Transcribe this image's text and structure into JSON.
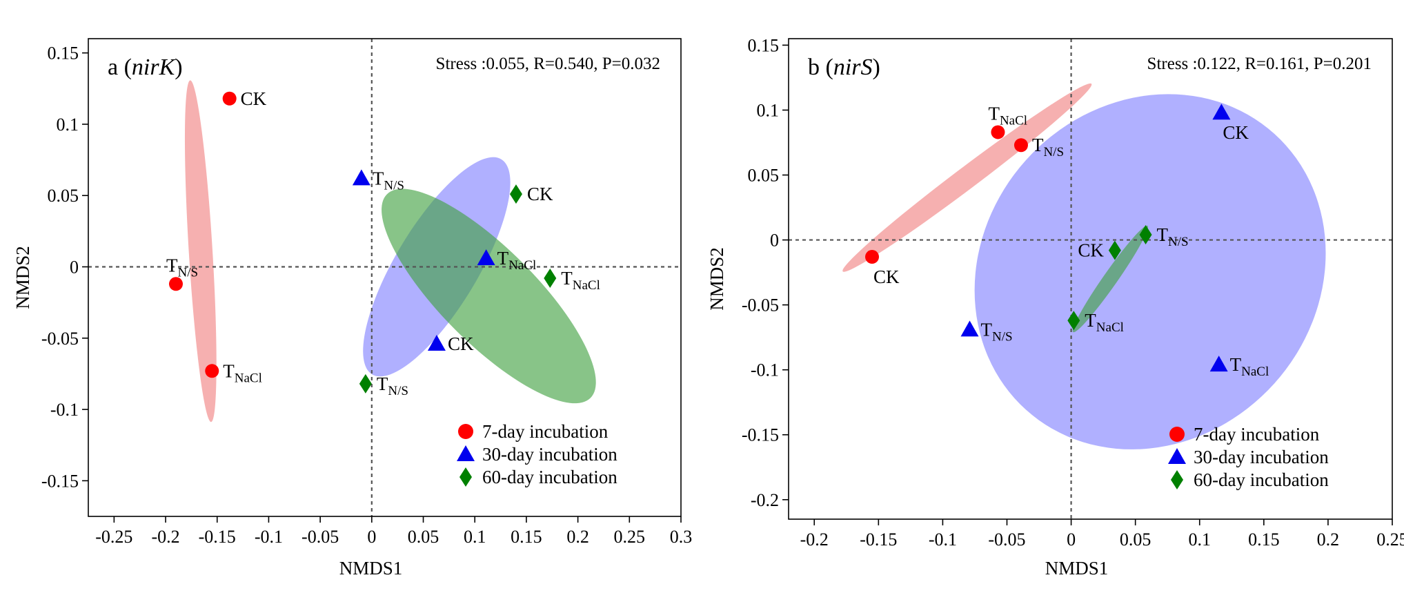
{
  "chart_data": [
    {
      "type": "scatter",
      "panel_letter": "a",
      "gene": "nirK",
      "stats": "Stress :0.055, R=0.540, P=0.032",
      "xlabel": "NMDS1",
      "ylabel": "NMDS2",
      "xlim": [
        -0.275,
        0.3
      ],
      "ylim": [
        -0.175,
        0.16
      ],
      "xticks": [
        -0.25,
        -0.2,
        -0.15,
        -0.1,
        -0.05,
        0,
        0.05,
        0.1,
        0.15,
        0.2,
        0.25,
        0.3
      ],
      "xtick_labels": [
        "-0.25",
        "-0.2",
        "-0.15",
        "-0.1",
        "-0.05",
        "0",
        "0.05",
        "0.1",
        "0.15",
        "0.2",
        "0.25",
        "0.3"
      ],
      "yticks": [
        0.15,
        0.1,
        0.05,
        0,
        -0.05,
        -0.1,
        -0.15
      ],
      "ytick_labels": [
        "0.15",
        "0.1",
        "0.05",
        "0",
        "-0.05",
        "-0.1",
        "-0.15"
      ],
      "reference_lines": {
        "x": 0,
        "y": 0
      },
      "legend": [
        {
          "label": "7-day incubation",
          "marker": "circle",
          "color": "#ff0000"
        },
        {
          "label": "30-day incubation",
          "marker": "triangle",
          "color": "#0000ee"
        },
        {
          "label": "60-day incubation",
          "marker": "diamond",
          "color": "#008000"
        }
      ],
      "ellipses": [
        {
          "group": "7-day incubation",
          "color": "#f08080",
          "cx": -0.166,
          "cy": 0.011,
          "rx": 0.0115,
          "ry": 0.12,
          "rotation_deg": -3.5
        },
        {
          "group": "30-day incubation",
          "color": "#7f7fff",
          "cx": 0.063,
          "cy": 0.0,
          "rx": 0.04,
          "ry": 0.088,
          "rotation_deg": 31
        },
        {
          "group": "60-day incubation",
          "color": "#3f9f3f",
          "cx": 0.1135,
          "cy": -0.0205,
          "rx": 0.046,
          "ry": 0.101,
          "rotation_deg": -45
        }
      ],
      "series": [
        {
          "name": "7-day incubation",
          "points": [
            {
              "name": "CK",
              "sub": "",
              "x": -0.138,
              "y": 0.118,
              "label_pos": "right"
            },
            {
              "name": "T",
              "sub": "N/S",
              "x": -0.19,
              "y": -0.012,
              "label_pos": "above"
            },
            {
              "name": "T",
              "sub": "NaCl",
              "x": -0.155,
              "y": -0.073,
              "label_pos": "right"
            }
          ]
        },
        {
          "name": "30-day incubation",
          "points": [
            {
              "name": "T",
              "sub": "N/S",
              "x": -0.01,
              "y": 0.062,
              "label_pos": "right"
            },
            {
              "name": "T",
              "sub": "NaCl",
              "x": 0.111,
              "y": 0.006,
              "label_pos": "right"
            },
            {
              "name": "CK",
              "sub": "",
              "x": 0.063,
              "y": -0.054,
              "label_pos": "right"
            }
          ]
        },
        {
          "name": "60-day incubation",
          "points": [
            {
              "name": "CK",
              "sub": "",
              "x": 0.14,
              "y": 0.051,
              "label_pos": "right"
            },
            {
              "name": "T",
              "sub": "NaCl",
              "x": 0.173,
              "y": -0.008,
              "label_pos": "right"
            },
            {
              "name": "T",
              "sub": "N/S",
              "x": -0.006,
              "y": -0.082,
              "label_pos": "right"
            }
          ]
        }
      ]
    },
    {
      "type": "scatter",
      "panel_letter": "b",
      "gene": "nirS",
      "stats": "Stress :0.122, R=0.161, P=0.201",
      "xlabel": "NMDS1",
      "ylabel": "NMDS2",
      "xlim": [
        -0.22,
        0.25
      ],
      "ylim": [
        -0.215,
        0.155
      ],
      "xticks": [
        -0.2,
        -0.15,
        -0.1,
        -0.05,
        0,
        0.05,
        0.1,
        0.15,
        0.2,
        0.25
      ],
      "xtick_labels": [
        "-0.2",
        "-0.15",
        "-0.1",
        "-0.05",
        "0",
        "0.05",
        "0.1",
        "0.15",
        "0.2",
        "0.25"
      ],
      "yticks": [
        0.15,
        0.1,
        0.05,
        0,
        -0.05,
        -0.1,
        -0.15,
        -0.2
      ],
      "ytick_labels": [
        "0.15",
        "0.1",
        "0.05",
        "0",
        "-0.05",
        "-0.1",
        "-0.15",
        "-0.2"
      ],
      "reference_lines": {
        "x": 0,
        "y": 0
      },
      "legend": [
        {
          "label": "7-day incubation",
          "marker": "circle",
          "color": "#ff0000"
        },
        {
          "label": "30-day incubation",
          "marker": "triangle",
          "color": "#0000ee"
        },
        {
          "label": "60-day incubation",
          "marker": "diamond",
          "color": "#008000"
        }
      ],
      "ellipses": [
        {
          "group": "7-day incubation",
          "color": "#f08080",
          "cx": -0.081,
          "cy": 0.048,
          "rx": 0.0085,
          "ry": 0.12,
          "rotation_deg": 53
        },
        {
          "group": "30-day incubation",
          "color": "#7f7fff",
          "cx": 0.0615,
          "cy": -0.0245,
          "rx": 0.13,
          "ry": 0.143,
          "rotation_deg": 42
        },
        {
          "group": "60-day incubation",
          "color": "#3f9f3f",
          "cx": 0.0305,
          "cy": -0.03,
          "rx": 0.0055,
          "ry": 0.05,
          "rotation_deg": 35
        }
      ],
      "series": [
        {
          "name": "7-day incubation",
          "points": [
            {
              "name": "T",
              "sub": "NaCl",
              "x": -0.057,
              "y": 0.083,
              "label_pos": "above"
            },
            {
              "name": "T",
              "sub": "N/S",
              "x": -0.039,
              "y": 0.073,
              "label_pos": "right"
            },
            {
              "name": "CK",
              "sub": "",
              "x": -0.155,
              "y": -0.013,
              "label_pos": "below"
            }
          ]
        },
        {
          "name": "30-day incubation",
          "points": [
            {
              "name": "CK",
              "sub": "",
              "x": 0.117,
              "y": 0.098,
              "label_pos": "below"
            },
            {
              "name": "T",
              "sub": "N/S",
              "x": -0.079,
              "y": -0.069,
              "label_pos": "right"
            },
            {
              "name": "T",
              "sub": "NaCl",
              "x": 0.115,
              "y": -0.096,
              "label_pos": "right"
            }
          ]
        },
        {
          "name": "60-day incubation",
          "points": [
            {
              "name": "T",
              "sub": "N/S",
              "x": 0.058,
              "y": 0.004,
              "label_pos": "right"
            },
            {
              "name": "CK",
              "sub": "",
              "x": 0.034,
              "y": -0.008,
              "label_pos": "left"
            },
            {
              "name": "T",
              "sub": "NaCl",
              "x": 0.002,
              "y": -0.062,
              "label_pos": "right"
            }
          ]
        }
      ]
    }
  ]
}
